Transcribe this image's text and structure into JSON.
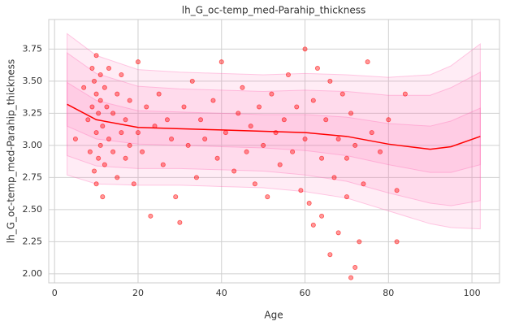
{
  "chart_data": {
    "type": "scatter",
    "title": "lh_G_oc-temp_med-Parahip_thickness",
    "x_label": "Age",
    "y_label": "lh_G_oc-temp_med-Parahip_thickness",
    "xlim": [
      -1.4,
      106.6
    ],
    "ylim": [
      1.93,
      3.98
    ],
    "xticks": [
      0,
      20,
      40,
      60,
      80,
      100
    ],
    "yticks": [
      {
        "value": 2,
        "label": "2.00"
      },
      {
        "value": 2.25,
        "label": "2.25"
      },
      {
        "value": 2.5,
        "label": "2.50"
      },
      {
        "value": 2.75,
        "label": "2.75"
      },
      {
        "value": 3,
        "label": "3.00"
      },
      {
        "value": 3.25,
        "label": "3.25"
      },
      {
        "value": 3.5,
        "label": "3.50"
      },
      {
        "value": 3.75,
        "label": "3.75"
      }
    ],
    "grid": true,
    "curve_x": [
      3,
      10,
      20,
      30,
      40,
      50,
      60,
      70,
      80,
      90,
      95,
      102
    ],
    "bands": [
      {
        "color": "#ff69b4",
        "upper": [
          3.87,
          3.7,
          3.59,
          3.57,
          3.56,
          3.55,
          3.56,
          3.55,
          3.53,
          3.55,
          3.62,
          3.79
        ],
        "lower": [
          2.77,
          2.7,
          2.69,
          2.69,
          2.68,
          2.67,
          2.64,
          2.59,
          2.49,
          2.39,
          2.36,
          2.35
        ]
      },
      {
        "color": "#ff69b4",
        "upper": [
          3.72,
          3.56,
          3.46,
          3.44,
          3.43,
          3.42,
          3.43,
          3.42,
          3.39,
          3.39,
          3.45,
          3.57
        ],
        "lower": [
          2.92,
          2.84,
          2.82,
          2.82,
          2.81,
          2.8,
          2.77,
          2.72,
          2.63,
          2.55,
          2.53,
          2.57
        ]
      },
      {
        "color": "#ff69b4",
        "upper": [
          3.49,
          3.35,
          3.27,
          3.26,
          3.25,
          3.24,
          3.24,
          3.22,
          3.17,
          3.15,
          3.19,
          3.29
        ],
        "lower": [
          3.15,
          3.05,
          3.01,
          3.0,
          2.99,
          2.98,
          2.96,
          2.92,
          2.85,
          2.79,
          2.79,
          2.85
        ]
      }
    ],
    "median": {
      "color": "#ff0000",
      "values": [
        3.32,
        3.2,
        3.14,
        3.13,
        3.12,
        3.11,
        3.1,
        3.07,
        3.01,
        2.97,
        2.99,
        3.07
      ]
    },
    "points": {
      "color": "#ff0000",
      "x": [
        5,
        7,
        8,
        8.5,
        9,
        9,
        9.5,
        9.5,
        10,
        10,
        10,
        10,
        10.5,
        10.5,
        11,
        11,
        11,
        11.5,
        11.5,
        12,
        12,
        12.5,
        13,
        13,
        14,
        14,
        15,
        15,
        16,
        16,
        17,
        17,
        18,
        18,
        19,
        20,
        20,
        21,
        22,
        23,
        24,
        25,
        26,
        27,
        28,
        29,
        30,
        31,
        32,
        33,
        34,
        35,
        36,
        38,
        39,
        40,
        41,
        43,
        44,
        45,
        46,
        47,
        48,
        49,
        50,
        51,
        52,
        53,
        54,
        55,
        56,
        57,
        58,
        59,
        60,
        60,
        61,
        62,
        62,
        63,
        64,
        64,
        65,
        66,
        66,
        67,
        68,
        68,
        69,
        70,
        70,
        71,
        71,
        72,
        72,
        73,
        74,
        75,
        76,
        78,
        80,
        82,
        82,
        84
      ],
      "y": [
        3.05,
        3.45,
        3.2,
        2.95,
        3.6,
        3.3,
        2.8,
        3.5,
        3.1,
        3.7,
        2.7,
        3.4,
        3.25,
        2.9,
        3.55,
        3.0,
        3.35,
        2.6,
        3.15,
        3.45,
        2.85,
        3.3,
        3.05,
        3.6,
        2.95,
        3.25,
        3.4,
        2.75,
        3.1,
        3.55,
        3.2,
        2.9,
        3.35,
        3.0,
        2.7,
        3.65,
        3.1,
        2.95,
        3.3,
        2.45,
        3.15,
        3.4,
        2.85,
        3.2,
        3.05,
        2.6,
        2.4,
        3.3,
        3.0,
        3.5,
        2.75,
        3.2,
        3.05,
        3.35,
        2.9,
        3.65,
        3.1,
        2.8,
        3.25,
        3.45,
        2.95,
        3.15,
        2.7,
        3.3,
        3.0,
        2.6,
        3.4,
        3.1,
        2.85,
        3.2,
        3.55,
        2.95,
        3.3,
        2.65,
        3.75,
        3.05,
        2.55,
        3.35,
        2.38,
        3.6,
        2.9,
        2.45,
        3.2,
        2.15,
        3.5,
        2.75,
        3.05,
        2.32,
        3.4,
        2.9,
        2.6,
        1.97,
        3.25,
        2.05,
        3.0,
        2.25,
        2.7,
        3.65,
        3.1,
        2.95,
        3.2,
        2.25,
        2.65,
        3.4
      ]
    }
  }
}
